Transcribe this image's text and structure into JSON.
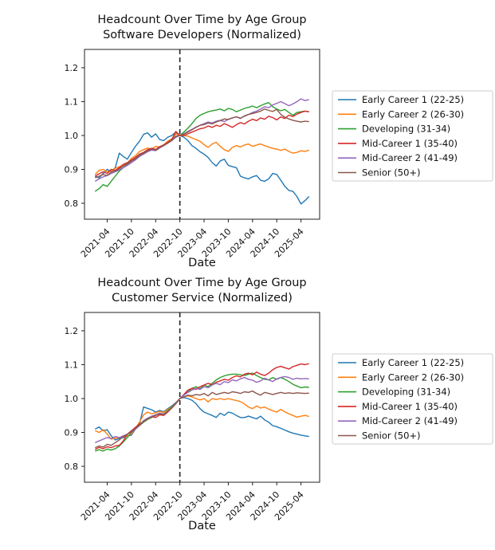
{
  "figure": {
    "background": "#ffffff",
    "charts": [
      {
        "title_line1": "Headcount Over Time by Age Group",
        "title_line2": "Software Developers (Normalized)",
        "xlabel": "Date"
      },
      {
        "title_line1": "Headcount Over Time by Age Group",
        "title_line2": "Customer Service (Normalized)",
        "xlabel": "Date"
      }
    ]
  },
  "chart_data": [
    {
      "type": "line",
      "title": "Headcount Over Time by Age Group - Software Developers (Normalized)",
      "xlabel": "Date",
      "ylabel": "",
      "x_start": "2021-01",
      "x_end": "2025-06",
      "x_freq": "monthly",
      "xticks": [
        "2021-04",
        "2021-10",
        "2022-04",
        "2022-10",
        "2023-04",
        "2023-10",
        "2024-04",
        "2024-10",
        "2025-04"
      ],
      "yticks": [
        0.8,
        0.9,
        1.0,
        1.1,
        1.2
      ],
      "ylim": [
        0.753,
        1.254
      ],
      "event_line_month": "2022-10",
      "grid": false,
      "legend_position": "right",
      "series": [
        {
          "name": "Early Career 1 (22-25)",
          "color": "#1f77b4",
          "values": [
            0.88,
            0.875,
            0.888,
            0.9,
            0.893,
            0.905,
            0.948,
            0.938,
            0.93,
            0.95,
            0.968,
            0.983,
            1.003,
            1.008,
            0.995,
            1.005,
            0.988,
            0.985,
            0.995,
            1.0,
            1.01,
            1.0,
            0.995,
            0.985,
            0.97,
            0.962,
            0.952,
            0.945,
            0.935,
            0.92,
            0.91,
            0.925,
            0.93,
            0.912,
            0.908,
            0.905,
            0.88,
            0.875,
            0.872,
            0.878,
            0.882,
            0.868,
            0.865,
            0.872,
            0.888,
            0.885,
            0.868,
            0.85,
            0.838,
            0.835,
            0.82,
            0.798,
            0.808,
            0.82
          ]
        },
        {
          "name": "Early Career 2 (26-30)",
          "color": "#ff7f0e",
          "values": [
            0.885,
            0.897,
            0.9,
            0.893,
            0.895,
            0.903,
            0.908,
            0.913,
            0.918,
            0.933,
            0.94,
            0.953,
            0.958,
            0.963,
            0.96,
            0.968,
            0.966,
            0.973,
            0.983,
            0.99,
            1.005,
            1.0,
            1.0,
            0.998,
            0.993,
            0.988,
            0.983,
            0.973,
            0.965,
            0.975,
            0.98,
            0.968,
            0.958,
            0.953,
            0.965,
            0.97,
            0.966,
            0.972,
            0.975,
            0.968,
            0.972,
            0.975,
            0.97,
            0.966,
            0.962,
            0.96,
            0.956,
            0.96,
            0.953,
            0.948,
            0.95,
            0.955,
            0.953,
            0.957
          ]
        },
        {
          "name": "Developing (31-34)",
          "color": "#2ca02c",
          "values": [
            0.835,
            0.843,
            0.855,
            0.85,
            0.865,
            0.88,
            0.895,
            0.905,
            0.915,
            0.925,
            0.93,
            0.94,
            0.948,
            0.955,
            0.96,
            0.957,
            0.965,
            0.972,
            0.978,
            0.985,
            0.995,
            1.0,
            1.01,
            1.022,
            1.035,
            1.05,
            1.06,
            1.065,
            1.07,
            1.073,
            1.075,
            1.078,
            1.073,
            1.08,
            1.077,
            1.07,
            1.075,
            1.08,
            1.083,
            1.087,
            1.082,
            1.088,
            1.093,
            1.097,
            1.085,
            1.078,
            1.073,
            1.077,
            1.068,
            1.06,
            1.068,
            1.07,
            1.072,
            1.07
          ]
        },
        {
          "name": "Mid-Career 1 (35-40)",
          "color": "#d62728",
          "values": [
            0.88,
            0.887,
            0.893,
            0.888,
            0.9,
            0.897,
            0.905,
            0.915,
            0.92,
            0.928,
            0.935,
            0.945,
            0.95,
            0.958,
            0.962,
            0.959,
            0.967,
            0.972,
            0.98,
            0.988,
            1.012,
            1.0,
            1.0,
            1.005,
            1.01,
            1.015,
            1.02,
            1.022,
            1.028,
            1.024,
            1.03,
            1.027,
            1.035,
            1.03,
            1.024,
            1.032,
            1.038,
            1.034,
            1.042,
            1.048,
            1.044,
            1.052,
            1.048,
            1.057,
            1.053,
            1.046,
            1.055,
            1.05,
            1.06,
            1.056,
            1.063,
            1.068,
            1.072,
            1.07
          ]
        },
        {
          "name": "Mid-Career 2 (41-49)",
          "color": "#9467bd",
          "values": [
            0.865,
            0.872,
            0.878,
            0.882,
            0.888,
            0.893,
            0.898,
            0.905,
            0.912,
            0.92,
            0.928,
            0.938,
            0.945,
            0.952,
            0.957,
            0.955,
            0.963,
            0.97,
            0.977,
            0.985,
            0.995,
            1.0,
            1.005,
            1.012,
            1.018,
            1.025,
            1.03,
            1.035,
            1.04,
            1.037,
            1.042,
            1.045,
            1.041,
            1.048,
            1.052,
            1.055,
            1.05,
            1.058,
            1.062,
            1.068,
            1.072,
            1.078,
            1.085,
            1.082,
            1.09,
            1.095,
            1.1,
            1.094,
            1.088,
            1.093,
            1.1,
            1.108,
            1.103,
            1.106
          ]
        },
        {
          "name": "Senior (50+)",
          "color": "#8c564b",
          "values": [
            0.875,
            0.88,
            0.885,
            0.882,
            0.892,
            0.895,
            0.902,
            0.91,
            0.917,
            0.925,
            0.932,
            0.942,
            0.948,
            0.955,
            0.96,
            0.957,
            0.965,
            0.97,
            0.978,
            0.986,
            0.998,
            1.0,
            1.004,
            1.01,
            1.017,
            1.024,
            1.03,
            1.032,
            1.037,
            1.034,
            1.04,
            1.044,
            1.049,
            1.047,
            1.052,
            1.055,
            1.051,
            1.057,
            1.062,
            1.065,
            1.068,
            1.072,
            1.078,
            1.074,
            1.071,
            1.077,
            1.062,
            1.054,
            1.049,
            1.045,
            1.042,
            1.04,
            1.042,
            1.041
          ]
        }
      ]
    },
    {
      "type": "line",
      "title": "Headcount Over Time by Age Group - Customer Service (Normalized)",
      "xlabel": "Date",
      "ylabel": "",
      "x_start": "2021-01",
      "x_end": "2025-06",
      "x_freq": "monthly",
      "xticks": [
        "2021-04",
        "2021-10",
        "2022-04",
        "2022-10",
        "2023-04",
        "2023-10",
        "2024-04",
        "2024-10",
        "2025-04"
      ],
      "yticks": [
        0.8,
        0.9,
        1.0,
        1.1,
        1.2
      ],
      "ylim": [
        0.753,
        1.254
      ],
      "event_line_month": "2022-10",
      "grid": false,
      "legend_position": "right",
      "series": [
        {
          "name": "Early Career 1 (22-25)",
          "color": "#1f77b4",
          "values": [
            0.91,
            0.916,
            0.905,
            0.908,
            0.89,
            0.878,
            0.882,
            0.885,
            0.89,
            0.892,
            0.91,
            0.925,
            0.975,
            0.971,
            0.967,
            0.96,
            0.965,
            0.961,
            0.97,
            0.978,
            0.988,
            1.0,
            1.003,
            1.0,
            0.995,
            0.985,
            0.97,
            0.96,
            0.955,
            0.95,
            0.944,
            0.957,
            0.95,
            0.96,
            0.957,
            0.95,
            0.944,
            0.944,
            0.948,
            0.944,
            0.94,
            0.948,
            0.937,
            0.93,
            0.92,
            0.917,
            0.912,
            0.907,
            0.902,
            0.898,
            0.895,
            0.892,
            0.89,
            0.888
          ]
        },
        {
          "name": "Early Career 2 (26-30)",
          "color": "#ff7f0e",
          "values": [
            0.905,
            0.9,
            0.908,
            0.895,
            0.88,
            0.883,
            0.885,
            0.888,
            0.89,
            0.895,
            0.912,
            0.93,
            0.952,
            0.96,
            0.955,
            0.958,
            0.962,
            0.959,
            0.968,
            0.975,
            0.986,
            1.0,
            1.005,
            1.008,
            1.005,
            1.0,
            0.996,
            1.0,
            0.99,
            1.0,
            0.997,
            1.0,
            0.997,
            1.0,
            0.997,
            0.994,
            0.991,
            0.984,
            0.975,
            0.97,
            0.978,
            0.972,
            0.975,
            0.969,
            0.964,
            0.96,
            0.968,
            0.961,
            0.955,
            0.95,
            0.945,
            0.948,
            0.95,
            0.947
          ]
        },
        {
          "name": "Developing (31-34)",
          "color": "#2ca02c",
          "values": [
            0.845,
            0.849,
            0.845,
            0.851,
            0.848,
            0.852,
            0.86,
            0.872,
            0.885,
            0.9,
            0.91,
            0.92,
            0.93,
            0.938,
            0.944,
            0.95,
            0.957,
            0.954,
            0.964,
            0.974,
            0.985,
            1.0,
            1.01,
            1.02,
            1.03,
            1.035,
            1.029,
            1.04,
            1.035,
            1.045,
            1.055,
            1.062,
            1.067,
            1.07,
            1.072,
            1.072,
            1.07,
            1.068,
            1.072,
            1.075,
            1.068,
            1.062,
            1.057,
            1.055,
            1.062,
            1.057,
            1.062,
            1.057,
            1.05,
            1.042,
            1.037,
            1.032,
            1.034,
            1.033
          ]
        },
        {
          "name": "Mid-Career 1 (35-40)",
          "color": "#d62728",
          "values": [
            0.85,
            0.856,
            0.852,
            0.858,
            0.855,
            0.86,
            0.862,
            0.875,
            0.895,
            0.905,
            0.915,
            0.925,
            0.932,
            0.94,
            0.947,
            0.944,
            0.952,
            0.95,
            0.96,
            0.972,
            0.985,
            1.0,
            1.012,
            1.025,
            1.03,
            1.027,
            1.035,
            1.04,
            1.045,
            1.041,
            1.048,
            1.052,
            1.057,
            1.054,
            1.062,
            1.067,
            1.064,
            1.072,
            1.075,
            1.07,
            1.078,
            1.072,
            1.068,
            1.075,
            1.085,
            1.092,
            1.095,
            1.091,
            1.087,
            1.094,
            1.098,
            1.102,
            1.1,
            1.103
          ]
        },
        {
          "name": "Mid-Career 2 (41-49)",
          "color": "#9467bd",
          "values": [
            0.87,
            0.875,
            0.88,
            0.885,
            0.882,
            0.888,
            0.885,
            0.89,
            0.895,
            0.9,
            0.91,
            0.92,
            0.935,
            0.942,
            0.948,
            0.952,
            0.957,
            0.954,
            0.962,
            0.972,
            0.985,
            1.0,
            1.01,
            1.018,
            1.025,
            1.03,
            1.027,
            1.035,
            1.032,
            1.04,
            1.045,
            1.041,
            1.05,
            1.047,
            1.055,
            1.052,
            1.058,
            1.062,
            1.057,
            1.054,
            1.048,
            1.052,
            1.06,
            1.055,
            1.05,
            1.058,
            1.062,
            1.065,
            1.062,
            1.057,
            1.06,
            1.058,
            1.059,
            1.058
          ]
        },
        {
          "name": "Senior (50+)",
          "color": "#8c564b",
          "values": [
            0.855,
            0.86,
            0.857,
            0.865,
            0.862,
            0.87,
            0.878,
            0.888,
            0.895,
            0.902,
            0.912,
            0.922,
            0.932,
            0.94,
            0.945,
            0.95,
            0.955,
            0.952,
            0.962,
            0.972,
            0.985,
            1.0,
            1.005,
            1.01,
            1.008,
            1.012,
            1.01,
            1.015,
            1.008,
            1.018,
            1.012,
            1.015,
            1.018,
            1.015,
            1.02,
            1.018,
            1.015,
            1.02,
            1.018,
            1.022,
            1.015,
            1.01,
            1.018,
            1.015,
            1.012,
            1.015,
            1.018,
            1.015,
            1.017,
            1.015,
            1.017,
            1.016,
            1.015,
            1.016
          ]
        }
      ]
    }
  ]
}
